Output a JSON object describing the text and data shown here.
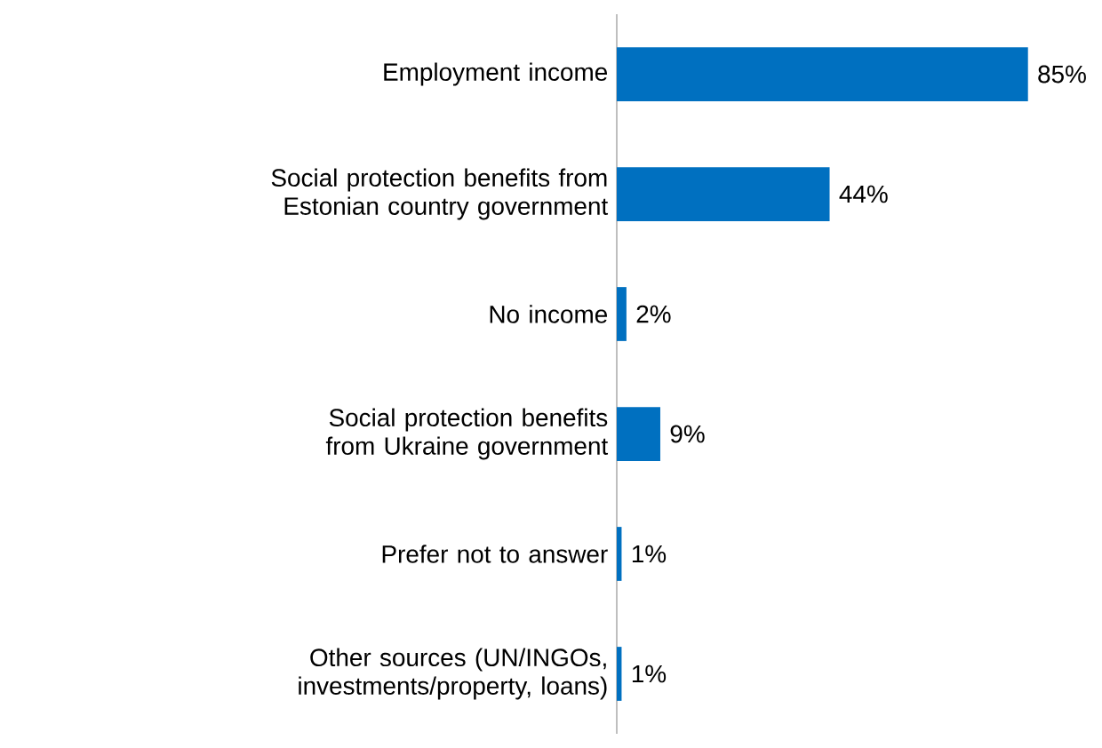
{
  "chart_data": {
    "type": "bar",
    "orientation": "horizontal",
    "categories": [
      "Employment income",
      "Social protection benefits from Estonian country government",
      "No income",
      "Social protection benefits from Ukraine government",
      "Prefer not to answer",
      "Other sources (UN/INGOs, investments/property, loans)"
    ],
    "values": [
      85,
      44,
      2,
      9,
      1,
      1
    ],
    "value_labels": [
      "85%",
      "44%",
      "2%",
      "9%",
      "1%",
      "1%"
    ],
    "color": "#0070c0"
  }
}
